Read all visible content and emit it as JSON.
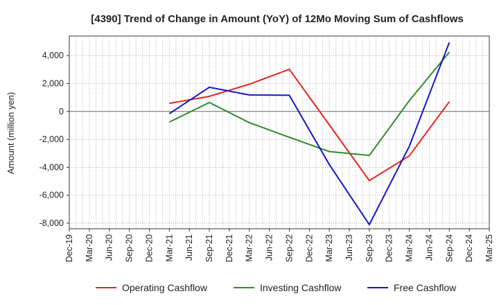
{
  "chart_data": {
    "type": "line",
    "title": "[4390]  Trend of Change in Amount (YoY) of 12Mo Moving Sum of Cashflows",
    "xlabel": "",
    "ylabel": "Amount (million yen)",
    "categories": [
      "Dec-19",
      "Mar-20",
      "Jun-20",
      "Sep-20",
      "Dec-20",
      "Mar-21",
      "Jun-21",
      "Sep-21",
      "Dec-21",
      "Mar-22",
      "Jun-22",
      "Sep-22",
      "Dec-22",
      "Mar-23",
      "Jun-23",
      "Sep-23",
      "Dec-23",
      "Mar-24",
      "Jun-24",
      "Sep-24",
      "Dec-24",
      "Mar-25"
    ],
    "ylim": [
      -8400,
      5400
    ],
    "yticks": [
      4000,
      2000,
      0,
      -2000,
      -4000,
      -6000,
      -8000
    ],
    "ytick_labels": [
      "4,000",
      "2,000",
      "0",
      "-2,000",
      "-4,000",
      "-6,000",
      "-8,000"
    ],
    "grid": true,
    "legend_position": "bottom",
    "series": [
      {
        "name": "Operating Cashflow",
        "color": "#e8231f",
        "values": [
          null,
          null,
          null,
          null,
          null,
          580,
          null,
          1080,
          null,
          1950,
          null,
          3020,
          null,
          null,
          null,
          -4950,
          null,
          -3180,
          null,
          700,
          null,
          null
        ]
      },
      {
        "name": "Investing Cashflow",
        "color": "#2f8a2f",
        "values": [
          null,
          null,
          null,
          null,
          null,
          -760,
          null,
          640,
          null,
          -800,
          null,
          -1850,
          null,
          -2870,
          null,
          -3150,
          null,
          780,
          null,
          4250,
          null,
          null
        ]
      },
      {
        "name": "Free Cashflow",
        "color": "#1515c8",
        "values": [
          null,
          null,
          null,
          null,
          null,
          -160,
          null,
          1730,
          null,
          1180,
          null,
          1160,
          null,
          -3800,
          null,
          -8100,
          null,
          -2500,
          null,
          4950,
          null,
          null
        ]
      }
    ]
  }
}
